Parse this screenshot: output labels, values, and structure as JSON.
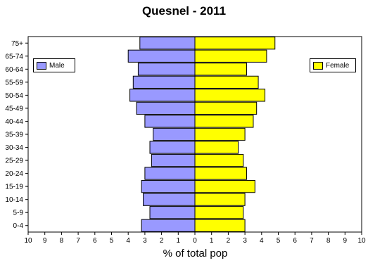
{
  "chart_data": {
    "type": "bar",
    "orientation": "horizontal",
    "title": "Quesnel - 2011",
    "xlabel": "% of total pop",
    "ylabel": "",
    "categories": [
      "0-4",
      "5-9",
      "10-14",
      "15-19",
      "20-24",
      "25-29",
      "30-34",
      "35-39",
      "40-44",
      "45-49",
      "50-54",
      "55-59",
      "60-64",
      "65-74",
      "75+"
    ],
    "series": [
      {
        "name": "Male",
        "color": "#9999ff",
        "values": [
          3.2,
          2.7,
          3.1,
          3.2,
          3.0,
          2.6,
          2.7,
          2.5,
          3.0,
          3.5,
          3.9,
          3.7,
          3.4,
          4.0,
          3.3
        ]
      },
      {
        "name": "Female",
        "color": "#ffff00",
        "values": [
          3.0,
          2.9,
          3.0,
          3.6,
          3.1,
          2.9,
          2.6,
          3.0,
          3.5,
          3.7,
          4.2,
          3.8,
          3.1,
          4.3,
          4.8
        ]
      }
    ],
    "xlim": [
      -10,
      10
    ],
    "xticks": [
      "10",
      "9",
      "8",
      "7",
      "6",
      "5",
      "4",
      "3",
      "2",
      "1",
      "0",
      "1",
      "2",
      "3",
      "4",
      "5",
      "6",
      "7",
      "8",
      "9",
      "10"
    ],
    "grid": false,
    "legend": {
      "male_position": "left",
      "female_position": "right"
    }
  }
}
